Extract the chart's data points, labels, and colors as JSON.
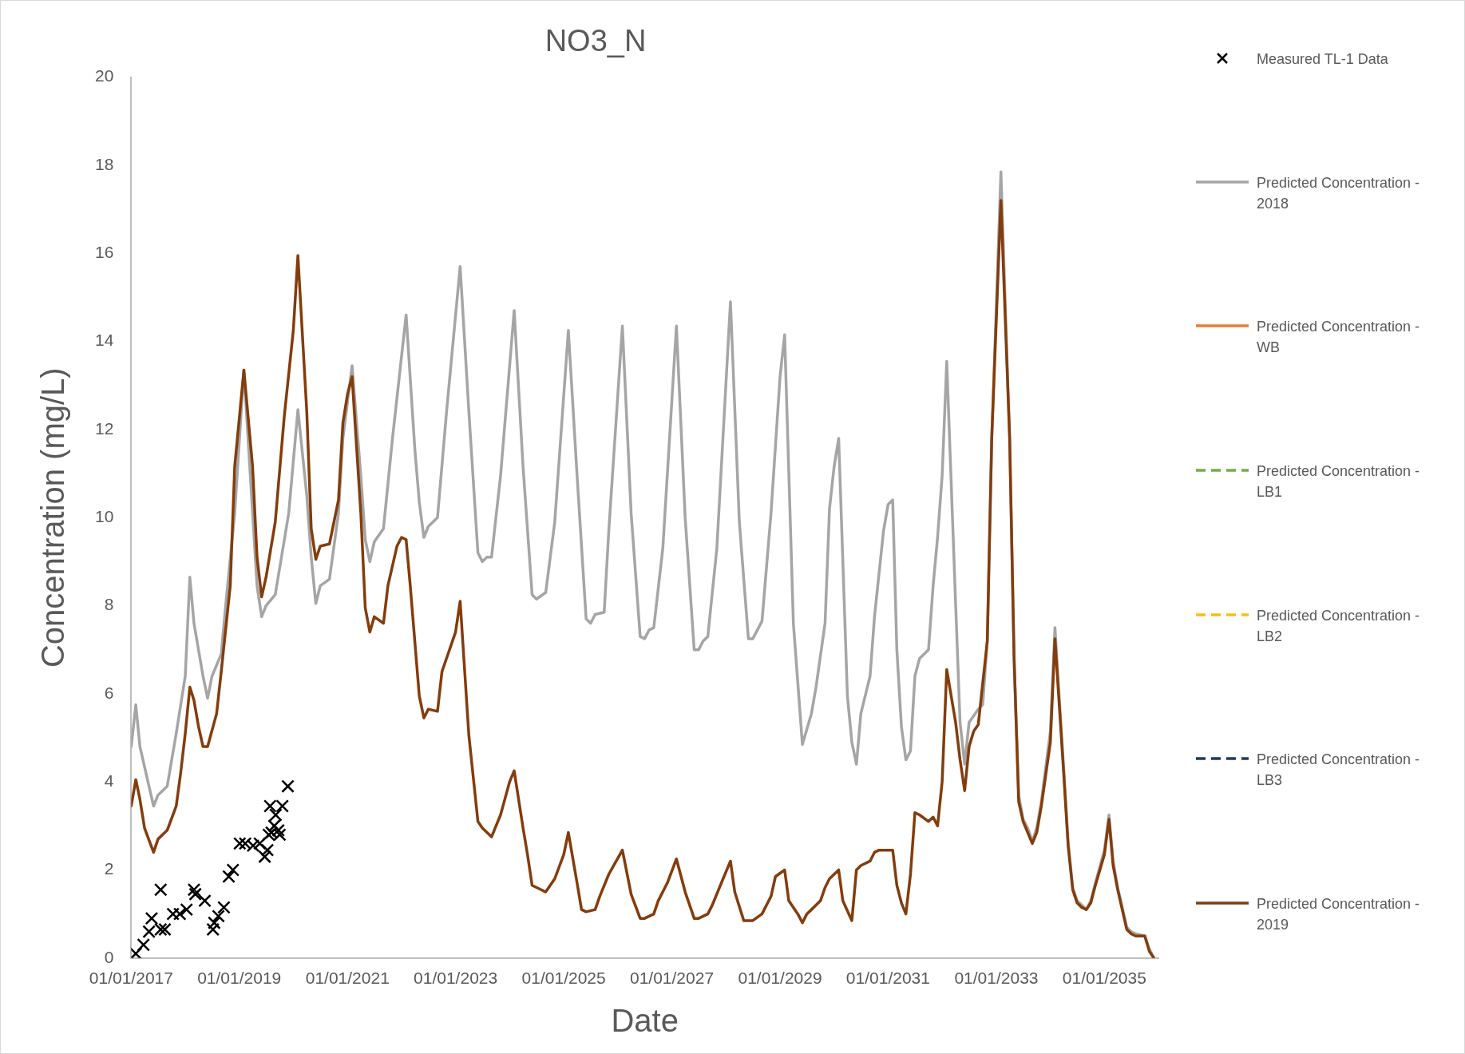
{
  "chart_data": {
    "type": "line",
    "title": "NO3_N",
    "xlabel": "Date",
    "ylabel": "Concentration (mg/L)",
    "xlim": [
      "2017-01-01",
      "2036-01-01"
    ],
    "xticks": [
      {
        "value": "2017-01-01",
        "label": "01/01/2017"
      },
      {
        "value": "2019-01-01",
        "label": "01/01/2019"
      },
      {
        "value": "2021-01-01",
        "label": "01/01/2021"
      },
      {
        "value": "2023-01-01",
        "label": "01/01/2023"
      },
      {
        "value": "2025-01-01",
        "label": "01/01/2025"
      },
      {
        "value": "2027-01-01",
        "label": "01/01/2027"
      },
      {
        "value": "2029-01-01",
        "label": "01/01/2029"
      },
      {
        "value": "2031-01-01",
        "label": "01/01/2031"
      },
      {
        "value": "2033-01-01",
        "label": "01/01/2033"
      },
      {
        "value": "2035-01-01",
        "label": "01/01/2035"
      }
    ],
    "ylim": [
      0,
      20
    ],
    "yticks": [
      0,
      2,
      4,
      6,
      8,
      10,
      12,
      14,
      16,
      18,
      20
    ],
    "legend": "right",
    "marker": "none",
    "line_style": "solid",
    "series": [
      {
        "name": "Measured TL-1 Data",
        "type": "scatter",
        "marker": "cross",
        "color": "#000000",
        "x": [
          "2017-02-01",
          "2017-03-25",
          "2017-05-01",
          "2017-05-19",
          "2017-07-19",
          "2017-07-19",
          "2017-08-16",
          "2017-10-10",
          "2017-11-25",
          "2018-01-10",
          "2018-03-01",
          "2018-03-10",
          "2018-05-13",
          "2018-07-07",
          "2018-07-16",
          "2018-08-13",
          "2018-09-19",
          "2018-10-22",
          "2018-11-19",
          "2019-01-04",
          "2019-02-10",
          "2019-04-04",
          "2019-05-19",
          "2019-06-22",
          "2019-07-10",
          "2019-07-19",
          "2019-08-07",
          "2019-08-25",
          "2019-09-04",
          "2019-07-28",
          "2019-10-19",
          "2019-09-22",
          "2019-10-01",
          "2019-11-25"
        ],
        "values": [
          0.1,
          0.3,
          0.6,
          0.9,
          1.55,
          0.65,
          0.65,
          1.0,
          1.0,
          1.1,
          1.55,
          1.45,
          1.3,
          0.65,
          0.8,
          0.95,
          1.15,
          1.85,
          2.0,
          2.6,
          2.6,
          2.55,
          2.6,
          2.3,
          2.45,
          2.8,
          2.85,
          3.0,
          3.25,
          3.45,
          3.45,
          2.9,
          2.8,
          3.9
        ]
      },
      {
        "name": "Predicted Concentration - 2018",
        "color": "#a5a5a5",
        "x": [
          "2017-01",
          "2017-02",
          "2017-03",
          "2017-05",
          "2017-06",
          "2017-07",
          "2017-09",
          "2017-11",
          "2018-01",
          "2018-02",
          "2018-03",
          "2018-05",
          "2018-06",
          "2018-07",
          "2018-09",
          "2018-10",
          "2018-12",
          "2019-02",
          "2019-05",
          "2019-06",
          "2019-07",
          "2019-09",
          "2019-12",
          "2020-02",
          "2020-04",
          "2020-05",
          "2020-06",
          "2020-07",
          "2020-09",
          "2020-11",
          "2020-12",
          "2021-02",
          "2021-04",
          "2021-05",
          "2021-06",
          "2021-07",
          "2021-09",
          "2021-11",
          "2022-02",
          "2022-04",
          "2022-05",
          "2022-06",
          "2022-07",
          "2022-09",
          "2022-11",
          "2023-02",
          "2023-04",
          "2023-06",
          "2023-07",
          "2023-08",
          "2023-09",
          "2023-11",
          "2024-02",
          "2024-04",
          "2024-06",
          "2024-07",
          "2024-09",
          "2024-11",
          "2025-02",
          "2025-04",
          "2025-06",
          "2025-07",
          "2025-08",
          "2025-10",
          "2025-11",
          "2026-02",
          "2026-04",
          "2026-06",
          "2026-07",
          "2026-08",
          "2026-09",
          "2026-11",
          "2027-02",
          "2027-04",
          "2027-06",
          "2027-07",
          "2027-08",
          "2027-09",
          "2027-11",
          "2028-02",
          "2028-04",
          "2028-06",
          "2028-07",
          "2028-08",
          "2028-09",
          "2028-11",
          "2029-01",
          "2029-02",
          "2029-04",
          "2029-06",
          "2029-08",
          "2029-09",
          "2029-11",
          "2029-12",
          "2030-01",
          "2030-02",
          "2030-04",
          "2030-05",
          "2030-06",
          "2030-07",
          "2030-09",
          "2030-10",
          "2030-12",
          "2031-01",
          "2031-02",
          "2031-03",
          "2031-04",
          "2031-05",
          "2031-06",
          "2031-07",
          "2031-08",
          "2031-10",
          "2031-11",
          "2031-12",
          "2032-01",
          "2032-02",
          "2032-04",
          "2032-05",
          "2032-06",
          "2032-07",
          "2032-09",
          "2032-10",
          "2032-11",
          "2032-12",
          "2033-02",
          "2033-04",
          "2033-05",
          "2033-06",
          "2033-07",
          "2033-08",
          "2033-09",
          "2033-10",
          "2033-11",
          "2034-01",
          "2034-02",
          "2034-04",
          "2034-05",
          "2034-06",
          "2034-07",
          "2034-08",
          "2034-09",
          "2034-10",
          "2034-11",
          "2035-01",
          "2035-02",
          "2035-03",
          "2035-04",
          "2035-06",
          "2035-07",
          "2035-08",
          "2035-10",
          "2035-11",
          "2035-12"
        ],
        "values": [
          4.8,
          5.75,
          4.8,
          3.9,
          3.45,
          3.7,
          3.9,
          5.1,
          6.4,
          8.65,
          7.6,
          6.4,
          5.9,
          6.4,
          6.9,
          8.0,
          10.1,
          13.35,
          8.45,
          7.75,
          8.0,
          8.25,
          10.1,
          12.45,
          10.5,
          9.1,
          8.05,
          8.45,
          8.6,
          10.1,
          11.8,
          13.45,
          10.95,
          9.5,
          9.0,
          9.45,
          9.75,
          11.8,
          14.6,
          11.55,
          10.35,
          9.55,
          9.8,
          10.0,
          12.4,
          15.7,
          12.4,
          9.2,
          9.0,
          9.1,
          9.1,
          10.95,
          14.7,
          11.15,
          8.25,
          8.15,
          8.3,
          9.9,
          14.25,
          10.95,
          7.7,
          7.6,
          7.8,
          7.85,
          9.7,
          14.35,
          10.1,
          7.3,
          7.25,
          7.45,
          7.5,
          9.3,
          14.35,
          10.0,
          7.0,
          7.0,
          7.2,
          7.3,
          9.3,
          14.9,
          9.9,
          7.25,
          7.25,
          7.45,
          7.65,
          10.1,
          13.2,
          14.15,
          7.6,
          4.85,
          5.55,
          6.15,
          7.6,
          10.2,
          11.15,
          11.8,
          5.95,
          4.9,
          4.4,
          5.55,
          6.4,
          7.75,
          9.7,
          10.3,
          10.4,
          7.0,
          5.25,
          4.5,
          4.7,
          6.4,
          6.8,
          7.0,
          8.45,
          9.55,
          10.95,
          13.55,
          8.05,
          5.35,
          4.4,
          5.35,
          5.65,
          5.75,
          7.2,
          11.8,
          17.85,
          11.8,
          6.8,
          3.7,
          3.15,
          2.95,
          2.65,
          2.95,
          3.55,
          5.15,
          7.5,
          4.3,
          2.65,
          1.6,
          1.3,
          1.2,
          1.1,
          1.3,
          1.7,
          2.45,
          3.25,
          2.2,
          1.6,
          0.7,
          0.6,
          0.55,
          0.5,
          0.2,
          0
        ]
      },
      {
        "name": "Predicted Concentration - WB",
        "color": "#ed7d31"
      },
      {
        "name": "Predicted Concentration - LB1",
        "color": "#70ad47",
        "line_style": "dashed"
      },
      {
        "name": "Predicted Concentration - LB2",
        "color": "#ffc000",
        "line_style": "dashed"
      },
      {
        "name": "Predicted Concentration - LB3",
        "color": "#1f3864",
        "line_style": "dashed"
      },
      {
        "name": "Predicted Concentration - 2019",
        "color": "#843c0c",
        "x": [
          "2017-01",
          "2017-02",
          "2017-03",
          "2017-04",
          "2017-06",
          "2017-07",
          "2017-08",
          "2017-09",
          "2017-11",
          "2017-12",
          "2018-01",
          "2018-02",
          "2018-03",
          "2018-04",
          "2018-05",
          "2018-06",
          "2018-08",
          "2018-09",
          "2018-11",
          "2018-12",
          "2019-02",
          "2019-04",
          "2019-05",
          "2019-06",
          "2019-07",
          "2019-09",
          "2019-11",
          "2020-01",
          "2020-02",
          "2020-04",
          "2020-05",
          "2020-06",
          "2020-07",
          "2020-09",
          "2020-11",
          "2020-12",
          "2021-01",
          "2021-02",
          "2021-04",
          "2021-05",
          "2021-06",
          "2021-07",
          "2021-09",
          "2021-10",
          "2021-12",
          "2022-01",
          "2022-02",
          "2022-03",
          "2022-05",
          "2022-06",
          "2022-07",
          "2022-09",
          "2022-10",
          "2023-01",
          "2023-02",
          "2023-04",
          "2023-06",
          "2023-07",
          "2023-09",
          "2023-11",
          "2024-01",
          "2024-02",
          "2024-04",
          "2024-05",
          "2024-06",
          "2024-08",
          "2024-09",
          "2024-11",
          "2025-01",
          "2025-02",
          "2025-04",
          "2025-05",
          "2025-06",
          "2025-08",
          "2025-09",
          "2025-11",
          "2026-02",
          "2026-04",
          "2026-06",
          "2026-07",
          "2026-09",
          "2026-10",
          "2026-12",
          "2027-02",
          "2027-04",
          "2027-06",
          "2027-07",
          "2027-09",
          "2027-10",
          "2027-12",
          "2028-02",
          "2028-03",
          "2028-05",
          "2028-07",
          "2028-09",
          "2028-11",
          "2028-12",
          "2029-02",
          "2029-03",
          "2029-05",
          "2029-06",
          "2029-07",
          "2029-08",
          "2029-10",
          "2029-11",
          "2029-12",
          "2030-02",
          "2030-03",
          "2030-05",
          "2030-06",
          "2030-07",
          "2030-09",
          "2030-10",
          "2030-11",
          "2030-12",
          "2031-02",
          "2031-03",
          "2031-04",
          "2031-05",
          "2031-06",
          "2031-07",
          "2031-08",
          "2031-10",
          "2031-11",
          "2031-12",
          "2032-01",
          "2032-02",
          "2032-04",
          "2032-05",
          "2032-06",
          "2032-07",
          "2032-08",
          "2032-09",
          "2032-11",
          "2032-12",
          "2033-02",
          "2033-04",
          "2033-05",
          "2033-06",
          "2033-07",
          "2033-08",
          "2033-09",
          "2033-10",
          "2033-11",
          "2034-01",
          "2034-02",
          "2034-04",
          "2034-05",
          "2034-06",
          "2034-07",
          "2034-08",
          "2034-09",
          "2034-10",
          "2034-11",
          "2035-01",
          "2035-02",
          "2035-03",
          "2035-04",
          "2035-06",
          "2035-07",
          "2035-08",
          "2035-10",
          "2035-11",
          "2035-12"
        ],
        "values": [
          3.45,
          4.05,
          3.6,
          2.95,
          2.4,
          2.7,
          2.8,
          2.9,
          3.45,
          4.2,
          5.1,
          6.15,
          5.85,
          5.25,
          4.8,
          4.8,
          5.55,
          6.5,
          8.45,
          11.15,
          13.35,
          11.15,
          9.1,
          8.2,
          8.65,
          9.9,
          12.3,
          14.25,
          15.95,
          12.4,
          9.75,
          9.05,
          9.35,
          9.4,
          10.4,
          12.15,
          12.8,
          13.2,
          10.1,
          7.95,
          7.4,
          7.75,
          7.6,
          8.45,
          9.35,
          9.55,
          9.5,
          8.45,
          5.95,
          5.45,
          5.65,
          5.6,
          6.5,
          7.4,
          8.1,
          5.05,
          3.1,
          2.95,
          2.75,
          3.25,
          4.0,
          4.25,
          2.95,
          2.35,
          1.65,
          1.55,
          1.5,
          1.8,
          2.35,
          2.85,
          1.7,
          1.1,
          1.05,
          1.1,
          1.4,
          1.9,
          2.45,
          1.45,
          0.9,
          0.9,
          1.0,
          1.3,
          1.7,
          2.25,
          1.5,
          0.9,
          0.9,
          1.0,
          1.2,
          1.7,
          2.2,
          1.5,
          0.85,
          0.85,
          1.0,
          1.4,
          1.85,
          2.0,
          1.3,
          1.0,
          0.8,
          1.0,
          1.1,
          1.3,
          1.6,
          1.8,
          2.0,
          1.3,
          0.85,
          2.0,
          2.1,
          2.2,
          2.4,
          2.45,
          2.45,
          2.45,
          1.65,
          1.25,
          1.0,
          1.9,
          3.3,
          3.25,
          3.1,
          3.2,
          3.0,
          4.0,
          6.55,
          5.35,
          4.5,
          3.8,
          4.8,
          5.15,
          5.3,
          7.2,
          11.8,
          17.2,
          11.8,
          6.8,
          3.55,
          3.1,
          2.85,
          2.6,
          2.85,
          3.45,
          4.9,
          7.25,
          4.2,
          2.55,
          1.55,
          1.25,
          1.15,
          1.1,
          1.25,
          1.65,
          2.35,
          3.15,
          2.1,
          1.55,
          0.65,
          0.55,
          0.5,
          0.5,
          0.15,
          0
        ]
      }
    ]
  }
}
